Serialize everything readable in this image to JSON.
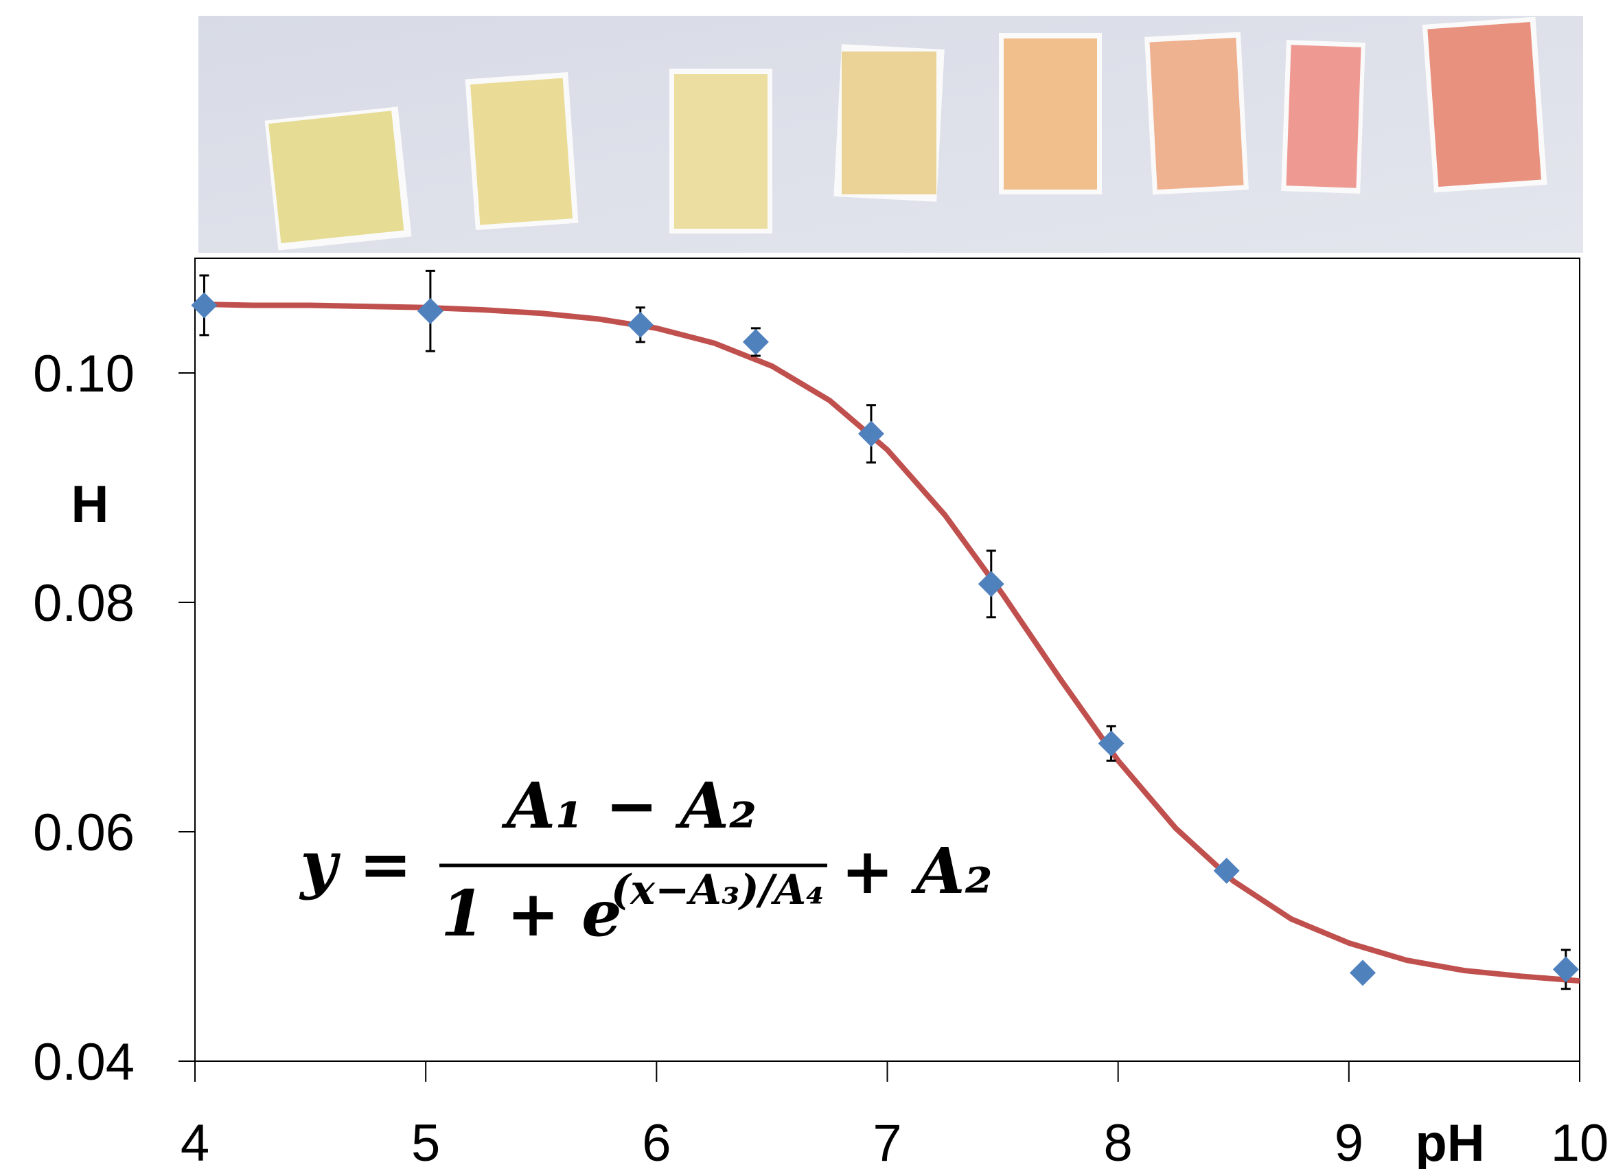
{
  "chart_data": {
    "type": "scatter",
    "y_label": "H",
    "x_label": "pH",
    "xlim": [
      4,
      10
    ],
    "xticks": [
      4,
      5,
      6,
      7,
      8,
      9,
      10
    ],
    "ylim": [
      0.04,
      0.11
    ],
    "yticks": [
      {
        "value": 0.04,
        "label": "0.04"
      },
      {
        "value": 0.06,
        "label": "0.06"
      },
      {
        "value": 0.08,
        "label": "0.08"
      },
      {
        "value": 0.1,
        "label": "0.10"
      }
    ],
    "series": [
      {
        "color": "#4f81bd",
        "x": [
          4.04,
          5.02,
          5.93,
          6.43,
          6.93,
          7.45,
          7.97,
          8.47,
          9.06,
          9.94
        ],
        "values": [
          0.1059,
          0.1054,
          0.1042,
          0.1027,
          0.0947,
          0.0816,
          0.0677,
          0.0566,
          0.0477,
          0.048
        ],
        "errors": [
          0.0026,
          0.0035,
          0.0015,
          0.0012,
          0.0025,
          0.0029,
          0.0015,
          null,
          null,
          0.0017
        ]
      }
    ],
    "fit": {
      "color": "#c0504d",
      "x": [
        4,
        4.25,
        4.5,
        4.75,
        5,
        5.25,
        5.5,
        5.75,
        6,
        6.25,
        6.5,
        6.75,
        7,
        7.25,
        7.5,
        7.75,
        8,
        8.25,
        8.5,
        8.75,
        9,
        9.25,
        9.5,
        9.75,
        10
      ],
      "values": [
        0.106,
        0.1059,
        0.1059,
        0.1058,
        0.1057,
        0.1055,
        0.1052,
        0.1047,
        0.1039,
        0.1026,
        0.1006,
        0.0976,
        0.0933,
        0.0876,
        0.0807,
        0.0733,
        0.0662,
        0.0603,
        0.0557,
        0.0524,
        0.0503,
        0.0488,
        0.0479,
        0.0474,
        0.047
      ]
    },
    "equation": {
      "lhs": "y =",
      "numerator": "A₁ − A₂",
      "denominator": "1 + e",
      "exponent": "(x−A₃)/A₄",
      "tail": "+ A₂"
    }
  }
}
